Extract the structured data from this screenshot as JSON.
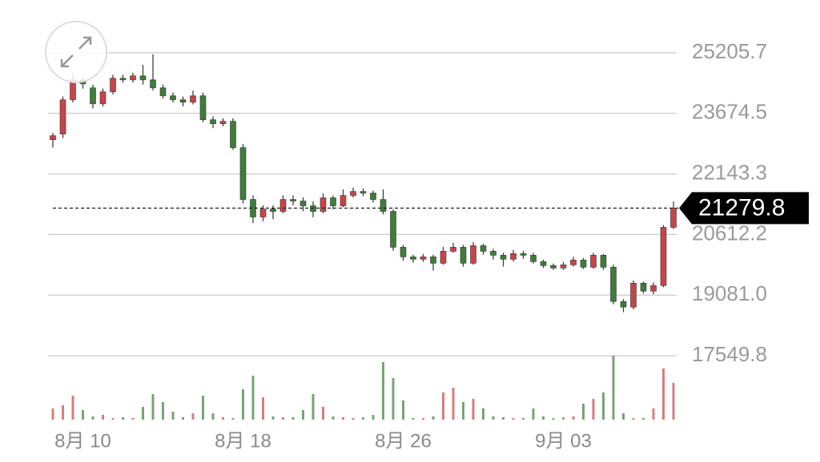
{
  "chart_data": {
    "type": "candlestick",
    "categories": [
      null,
      null,
      null,
      "8月 10",
      null,
      null,
      null,
      null,
      null,
      null,
      null,
      null,
      null,
      null,
      null,
      null,
      null,
      null,
      null,
      "8月 18",
      null,
      null,
      null,
      null,
      null,
      null,
      null,
      null,
      null,
      null,
      null,
      null,
      null,
      null,
      null,
      "8月 26",
      null,
      null,
      null,
      null,
      null,
      null,
      null,
      null,
      null,
      null,
      null,
      null,
      null,
      null,
      null,
      "9月 03",
      null,
      null,
      null,
      null,
      null,
      null,
      null,
      null,
      null,
      null,
      null
    ],
    "open": [
      23010,
      23151,
      24017,
      24521,
      24319,
      23916,
      24218,
      24561,
      24521,
      24621,
      24521,
      24319,
      24118,
      24017,
      23956,
      24118,
      23513,
      23412,
      23473,
      22808,
      21498,
      21055,
      21257,
      21196,
      21498,
      21458,
      21337,
      21196,
      21539,
      21337,
      21599,
      21700,
      21660,
      21498,
      21196,
      20290,
      20048,
      19988,
      20048,
      19887,
      20189,
      20290,
      19887,
      20330,
      20189,
      20088,
      19988,
      20129,
      20088,
      19927,
      19826,
      19766,
      19846,
      19967,
      19786,
      20088,
      19786,
      18920,
      18779,
      19383,
      19182,
      19323,
      20793
    ],
    "high": [
      23180,
      24100,
      24700,
      24600,
      24400,
      24300,
      24650,
      24650,
      24700,
      24900,
      25165,
      24400,
      24200,
      24100,
      24250,
      24200,
      23600,
      23550,
      23550,
      22900,
      21600,
      21350,
      21350,
      21600,
      21600,
      21550,
      21450,
      21650,
      21600,
      21750,
      21800,
      21780,
      21720,
      21750,
      21250,
      20350,
      20100,
      20120,
      20100,
      20300,
      20400,
      20350,
      20420,
      20380,
      20250,
      20150,
      20220,
      20200,
      20150,
      19980,
      19880,
      19920,
      20050,
      20020,
      20150,
      20120,
      19850,
      18980,
      19450,
      19420,
      19400,
      20850,
      21450
    ],
    "low": [
      22810,
      23050,
      23950,
      24300,
      23800,
      23850,
      24150,
      24450,
      24450,
      24400,
      24250,
      24050,
      23950,
      23850,
      23900,
      23450,
      23300,
      23350,
      22750,
      21400,
      20900,
      20950,
      21000,
      21150,
      21350,
      21200,
      21050,
      21150,
      21250,
      21300,
      21550,
      21580,
      21420,
      21120,
      20200,
      19950,
      19900,
      19920,
      19700,
      19850,
      20150,
      19800,
      19850,
      20100,
      19980,
      19800,
      19930,
      20000,
      19880,
      19770,
      19720,
      19720,
      19800,
      19740,
      19750,
      19720,
      18850,
      18650,
      18720,
      19120,
      19100,
      19280,
      20750
    ],
    "close": [
      23110,
      24017,
      24521,
      24420,
      23916,
      24218,
      24561,
      24521,
      24621,
      24521,
      24319,
      24118,
      24017,
      23956,
      24118,
      23513,
      23412,
      23473,
      22808,
      21498,
      21055,
      21257,
      21196,
      21498,
      21458,
      21337,
      21196,
      21539,
      21337,
      21599,
      21700,
      21660,
      21498,
      21196,
      20290,
      20048,
      19988,
      20048,
      19887,
      20189,
      20290,
      19887,
      20330,
      20189,
      20088,
      19988,
      20129,
      20088,
      19927,
      19826,
      19766,
      19846,
      19967,
      19786,
      20088,
      19786,
      18920,
      18779,
      19383,
      19182,
      19323,
      20793,
      21279.8
    ],
    "volume": [
      14,
      18,
      30,
      12,
      4,
      6,
      2,
      3,
      2,
      16,
      32,
      22,
      10,
      3,
      8,
      30,
      8,
      3,
      2,
      38,
      55,
      28,
      4,
      3,
      3,
      12,
      32,
      16,
      4,
      3,
      2,
      3,
      6,
      72,
      52,
      24,
      2,
      2,
      4,
      34,
      40,
      22,
      26,
      14,
      4,
      3,
      2,
      2,
      14,
      4,
      2,
      3,
      4,
      20,
      26,
      34,
      80,
      8,
      2,
      2,
      14,
      64,
      46
    ],
    "up_color": "#c9444a",
    "down_color": "#3f7d3a",
    "ylim": [
      17549.8,
      25205.7
    ],
    "yticks": [
      25205.7,
      23674.5,
      22143.3,
      20612.2,
      {
        "value": 19081,
        "label": "19081.0"
      },
      17549.8
    ],
    "grid": true,
    "last_price": 21279.8
  }
}
